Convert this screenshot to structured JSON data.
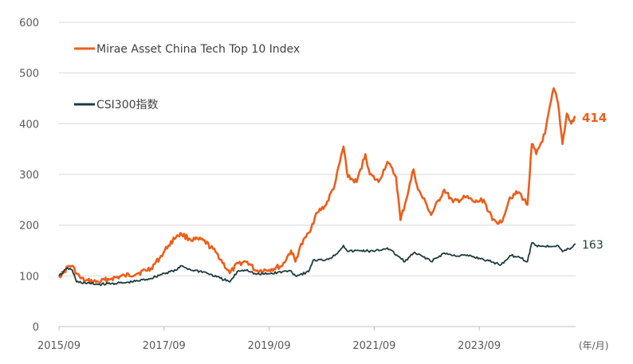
{
  "chart_data": {
    "type": "line",
    "title": "",
    "xlabel": "",
    "ylabel": "",
    "x_unit_label": "(年/月)",
    "ylim": [
      0,
      600
    ],
    "yticks": [
      0,
      100,
      200,
      300,
      400,
      500,
      600
    ],
    "xticks": [
      "2015/09",
      "2017/09",
      "2019/09",
      "2021/09",
      "2023/09"
    ],
    "grid": true,
    "legend_position": "top-left",
    "series": [
      {
        "name": "Mirae Asset China Tech Top 10 Index",
        "color": "#ea5f1b",
        "end_label": "414",
        "points": [
          [
            "2015/09",
            100
          ],
          [
            "2015/10",
            105
          ],
          [
            "2015/11",
            118
          ],
          [
            "2015/12",
            120
          ],
          [
            "2016/01",
            105
          ],
          [
            "2016/02",
            95
          ],
          [
            "2016/03",
            90
          ],
          [
            "2016/06",
            88
          ],
          [
            "2016/09",
            95
          ],
          [
            "2016/12",
            100
          ],
          [
            "2017/03",
            105
          ],
          [
            "2017/06",
            115
          ],
          [
            "2017/08",
            135
          ],
          [
            "2017/10",
            160
          ],
          [
            "2017/12",
            180
          ],
          [
            "2018/01",
            182
          ],
          [
            "2018/03",
            172
          ],
          [
            "2018/06",
            170
          ],
          [
            "2018/09",
            145
          ],
          [
            "2018/12",
            105
          ],
          [
            "2019/02",
            125
          ],
          [
            "2019/04",
            128
          ],
          [
            "2019/06",
            110
          ],
          [
            "2019/09",
            112
          ],
          [
            "2019/12",
            120
          ],
          [
            "2020/02",
            150
          ],
          [
            "2020/03",
            128
          ],
          [
            "2020/04",
            155
          ],
          [
            "2020/06",
            185
          ],
          [
            "2020/08",
            225
          ],
          [
            "2020/10",
            240
          ],
          [
            "2020/12",
            280
          ],
          [
            "2021/02",
            355
          ],
          [
            "2021/03",
            295
          ],
          [
            "2021/05",
            285
          ],
          [
            "2021/07",
            340
          ],
          [
            "2021/08",
            300
          ],
          [
            "2021/10",
            285
          ],
          [
            "2021/12",
            325
          ],
          [
            "2022/02",
            295
          ],
          [
            "2022/03",
            210
          ],
          [
            "2022/04",
            240
          ],
          [
            "2022/06",
            310
          ],
          [
            "2022/07",
            270
          ],
          [
            "2022/09",
            240
          ],
          [
            "2022/10",
            220
          ],
          [
            "2023/01",
            270
          ],
          [
            "2023/03",
            245
          ],
          [
            "2023/06",
            255
          ],
          [
            "2023/08",
            245
          ],
          [
            "2023/10",
            250
          ],
          [
            "2023/12",
            210
          ],
          [
            "2024/02",
            205
          ],
          [
            "2024/04",
            255
          ],
          [
            "2024/06",
            265
          ],
          [
            "2024/08",
            240
          ],
          [
            "2024/09",
            360
          ],
          [
            "2024/10",
            340
          ],
          [
            "2024/12",
            380
          ],
          [
            "2025/02",
            470
          ],
          [
            "2025/03",
            440
          ],
          [
            "2025/04",
            360
          ],
          [
            "2025/05",
            420
          ],
          [
            "2025/06",
            400
          ],
          [
            "2025/07",
            414
          ]
        ]
      },
      {
        "name": "CSI300指数",
        "color": "#1e3b40",
        "end_label": "163",
        "points": [
          [
            "2015/09",
            100
          ],
          [
            "2015/10",
            108
          ],
          [
            "2015/11",
            115
          ],
          [
            "2015/12",
            112
          ],
          [
            "2016/01",
            88
          ],
          [
            "2016/03",
            86
          ],
          [
            "2016/06",
            83
          ],
          [
            "2016/09",
            85
          ],
          [
            "2016/12",
            86
          ],
          [
            "2017/03",
            90
          ],
          [
            "2017/06",
            95
          ],
          [
            "2017/09",
            105
          ],
          [
            "2017/12",
            112
          ],
          [
            "2018/01",
            120
          ],
          [
            "2018/03",
            112
          ],
          [
            "2018/06",
            108
          ],
          [
            "2018/09",
            98
          ],
          [
            "2018/12",
            88
          ],
          [
            "2019/02",
            110
          ],
          [
            "2019/04",
            112
          ],
          [
            "2019/06",
            103
          ],
          [
            "2019/09",
            104
          ],
          [
            "2019/12",
            108
          ],
          [
            "2020/02",
            110
          ],
          [
            "2020/03",
            100
          ],
          [
            "2020/06",
            108
          ],
          [
            "2020/07",
            130
          ],
          [
            "2020/10",
            132
          ],
          [
            "2020/12",
            140
          ],
          [
            "2021/02",
            160
          ],
          [
            "2021/03",
            148
          ],
          [
            "2021/06",
            150
          ],
          [
            "2021/09",
            148
          ],
          [
            "2021/12",
            155
          ],
          [
            "2022/03",
            135
          ],
          [
            "2022/04",
            128
          ],
          [
            "2022/06",
            145
          ],
          [
            "2022/09",
            135
          ],
          [
            "2022/10",
            128
          ],
          [
            "2023/01",
            145
          ],
          [
            "2023/03",
            140
          ],
          [
            "2023/06",
            140
          ],
          [
            "2023/09",
            135
          ],
          [
            "2023/12",
            127
          ],
          [
            "2024/02",
            122
          ],
          [
            "2024/04",
            140
          ],
          [
            "2024/06",
            138
          ],
          [
            "2024/08",
            128
          ],
          [
            "2024/09",
            165
          ],
          [
            "2024/10",
            160
          ],
          [
            "2024/12",
            158
          ],
          [
            "2025/03",
            160
          ],
          [
            "2025/04",
            148
          ],
          [
            "2025/06",
            155
          ],
          [
            "2025/07",
            163
          ]
        ]
      }
    ]
  }
}
